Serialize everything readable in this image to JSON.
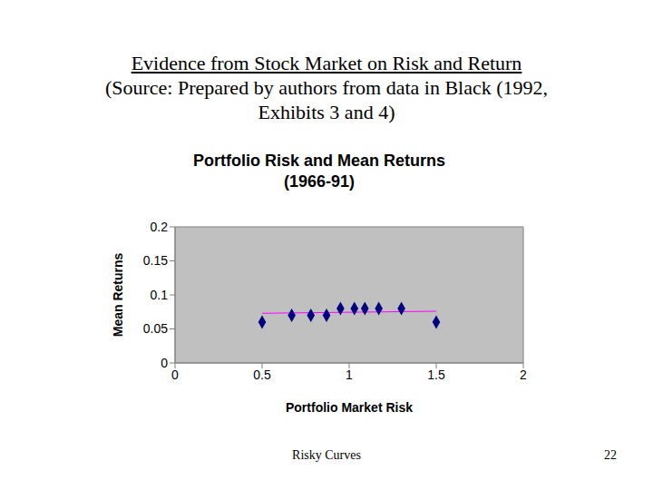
{
  "header": {
    "title": "Evidence from Stock Market on Risk and Return",
    "source_lines": [
      "(Source: Prepared by authors from data in Black (1992,",
      "Exhibits 3 and 4)"
    ]
  },
  "chart_data": {
    "type": "scatter",
    "title_lines": [
      "Portfolio Risk and Mean Returns",
      "(1966-91)"
    ],
    "x_label": "Portfolio Market Risk",
    "y_label": "Mean Returns",
    "xlim": [
      0,
      2
    ],
    "xticks": [
      0,
      0.5,
      1,
      1.5,
      2
    ],
    "ylim": [
      0,
      0.2
    ],
    "yticks": [
      0,
      0.05,
      0.1,
      0.15,
      0.2
    ],
    "grid": false,
    "points": {
      "x": [
        0.5,
        0.67,
        0.78,
        0.87,
        0.95,
        1.03,
        1.09,
        1.17,
        1.3,
        1.5
      ],
      "y": [
        0.06,
        0.07,
        0.07,
        0.07,
        0.08,
        0.08,
        0.08,
        0.08,
        0.08,
        0.06
      ],
      "color": "#000080",
      "marker": "diamond"
    },
    "trend_line": {
      "x": [
        0.5,
        1.5
      ],
      "y": [
        0.073,
        0.076
      ],
      "color": "#ff00ff",
      "line_style": "solid"
    }
  },
  "footer": {
    "left": "Risky Curves",
    "right": "22"
  }
}
